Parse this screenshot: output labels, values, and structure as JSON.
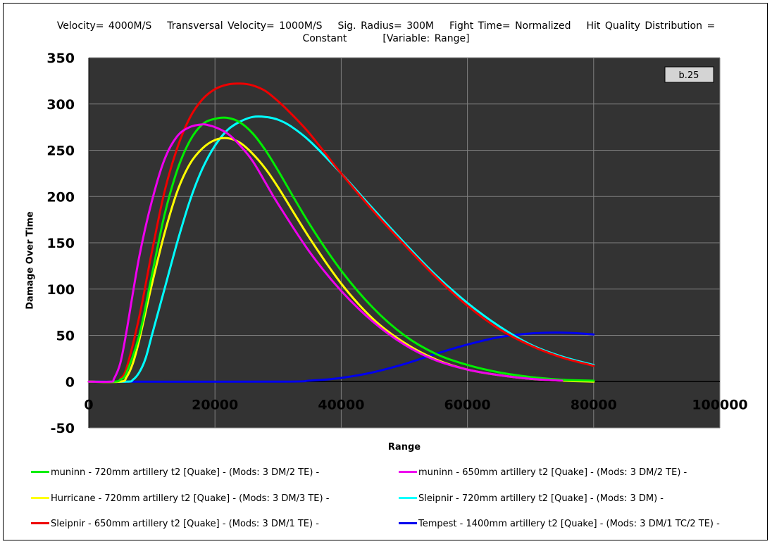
{
  "title_lines": [
    [
      "Velocity= 4000M/S",
      "Transversal Velocity= 1000M/S",
      "Sig. Radius= 300M",
      "Fight Time= Normalized",
      "Hit Quality Distribution ="
    ],
    [
      "Constant",
      "[Variable: Range]"
    ]
  ],
  "version_badge": "b.25",
  "chart_data": {
    "type": "line",
    "title": "Velocity= 4000M/S Transversal Velocity= 1000M/S Sig. Radius= 300M Fight Time= Normalized Hit Quality Distribution = Constant [Variable: Range]",
    "xlabel": "Range",
    "ylabel": "Damage Over Time",
    "xlim": [
      0,
      100000
    ],
    "ylim": [
      -50,
      350
    ],
    "x_ticks": [
      0,
      20000,
      40000,
      60000,
      80000,
      100000
    ],
    "y_ticks": [
      -50,
      0,
      50,
      100,
      150,
      200,
      250,
      300,
      350
    ],
    "x_tick_labels": [
      "0",
      "20000",
      "40000",
      "60000",
      "80000",
      "100000"
    ],
    "y_tick_labels": [
      "-50",
      "0",
      "50",
      "100",
      "150",
      "200",
      "250",
      "300",
      "350"
    ],
    "grid": true,
    "legend_position": "bottom",
    "series": [
      {
        "name": "muninn - 720mm artillery t2 [Quake] - (Mods: 3 DM/2 TE) -",
        "color": "#00ee00",
        "x": [
          0,
          4000,
          5000,
          6000,
          8000,
          10000,
          12000,
          14000,
          16000,
          18000,
          20000,
          22000,
          24000,
          26000,
          28000,
          30000,
          35000,
          40000,
          45000,
          50000,
          55000,
          60000,
          65000,
          70000,
          75000,
          80000
        ],
        "y": [
          0,
          0,
          2,
          10,
          50,
          115,
          180,
          228,
          260,
          278,
          284,
          285,
          280,
          268,
          250,
          228,
          170,
          120,
          80,
          50,
          30,
          18,
          10,
          5,
          2,
          1
        ]
      },
      {
        "name": "muninn - 650mm artillery t2 [Quake] - (Mods: 3 DM/2 TE) -",
        "color": "#ee00ee",
        "x": [
          0,
          3500,
          4000,
          5000,
          6000,
          8000,
          10000,
          12000,
          14000,
          16000,
          18000,
          19000,
          20000,
          22000,
          24000,
          26000,
          28000,
          30000,
          35000,
          40000,
          45000,
          50000,
          55000,
          60000,
          65000,
          70000,
          75000
        ],
        "y": [
          0,
          0,
          3,
          20,
          55,
          135,
          195,
          240,
          265,
          275,
          278,
          277,
          275,
          268,
          255,
          238,
          215,
          192,
          140,
          98,
          65,
          40,
          23,
          13,
          7,
          3,
          1
        ]
      },
      {
        "name": "Hurricane - 720mm artillery t2 [Quake] - (Mods: 3 DM/3 TE) -",
        "color": "#ffff00",
        "x": [
          0,
          5000,
          6000,
          7000,
          8000,
          10000,
          12000,
          14000,
          16000,
          18000,
          20000,
          22000,
          24000,
          26000,
          28000,
          30000,
          35000,
          40000,
          45000,
          50000,
          55000,
          60000,
          65000,
          70000,
          75000,
          80000
        ],
        "y": [
          0,
          0,
          5,
          20,
          45,
          105,
          160,
          205,
          235,
          252,
          261,
          263,
          258,
          246,
          230,
          210,
          155,
          106,
          68,
          42,
          24,
          13,
          7,
          3,
          1,
          0
        ]
      },
      {
        "name": "Sleipnir - 720mm artillery t2 [Quake] - (Mods: 3 DM) -",
        "color": "#00ffff",
        "x": [
          0,
          6000,
          7000,
          8000,
          9000,
          10000,
          12000,
          14000,
          16000,
          18000,
          20000,
          22000,
          24000,
          26000,
          28000,
          30000,
          32000,
          35000,
          40000,
          45000,
          50000,
          55000,
          60000,
          65000,
          70000,
          75000,
          80000
        ],
        "y": [
          0,
          0,
          2,
          10,
          25,
          50,
          100,
          150,
          195,
          230,
          255,
          272,
          281,
          286,
          286,
          283,
          276,
          260,
          225,
          187,
          150,
          115,
          85,
          60,
          40,
          27,
          18
        ]
      },
      {
        "name": "Sleipnir - 650mm artillery t2 [Quake] - (Mods: 3 DM/1 TE) -",
        "color": "#ee0000",
        "x": [
          0,
          4500,
          5000,
          6000,
          8000,
          10000,
          12000,
          14000,
          16000,
          18000,
          20000,
          22000,
          24000,
          26000,
          28000,
          30000,
          32000,
          35000,
          40000,
          45000,
          50000,
          55000,
          60000,
          65000,
          70000,
          75000,
          80000
        ],
        "y": [
          0,
          0,
          3,
          15,
          70,
          140,
          205,
          252,
          285,
          305,
          316,
          321,
          322,
          320,
          314,
          303,
          290,
          268,
          225,
          185,
          148,
          113,
          82,
          57,
          39,
          26,
          17
        ]
      },
      {
        "name": "Tempest - 1400mm artillery t2 [Quake] - (Mods: 3 DM/1 TC/2 TE) -",
        "color": "#0000ee",
        "x": [
          0,
          30000,
          35000,
          40000,
          45000,
          50000,
          55000,
          60000,
          65000,
          70000,
          75000,
          80000
        ],
        "y": [
          0,
          0,
          1,
          4,
          10,
          19,
          30,
          40,
          48,
          52,
          53,
          51
        ]
      }
    ]
  }
}
